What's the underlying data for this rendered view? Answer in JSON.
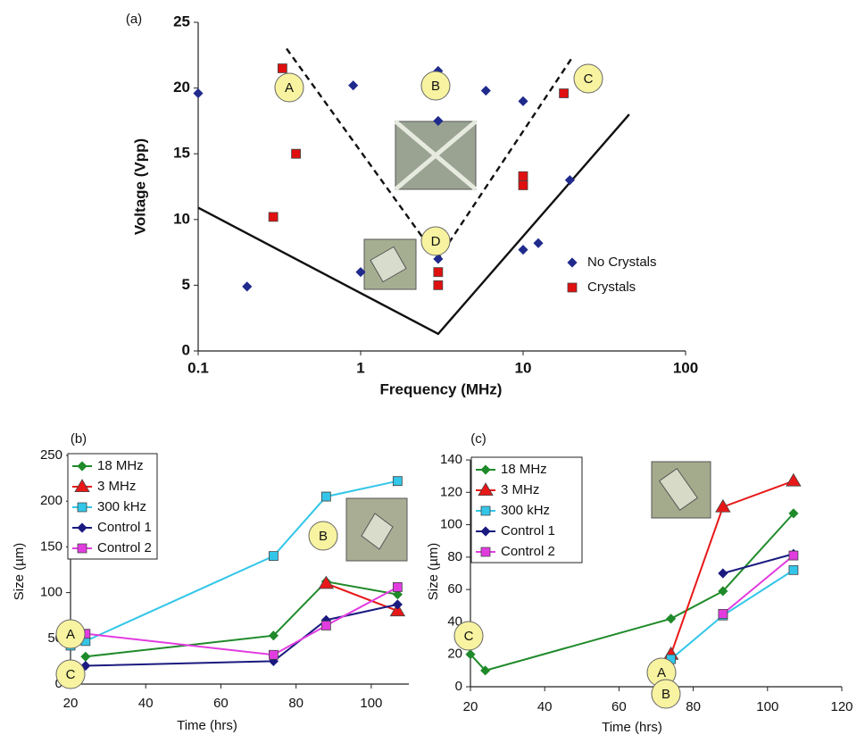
{
  "chart_data": [
    {
      "type": "scatter",
      "panel_label": "(a)",
      "x_label": "Frequency (MHz)",
      "y_label": "Voltage (Vpp)",
      "xscale": "log",
      "xlim": [
        0.1,
        100
      ],
      "ylim": [
        0,
        25
      ],
      "xticks": [
        0.1,
        1,
        10,
        100
      ],
      "yticks": [
        0,
        5,
        10,
        15,
        20,
        25
      ],
      "legend": "lower right",
      "series": [
        {
          "name": "No Crystals",
          "color": "#1f2a8c",
          "marker": "diamond",
          "x": [
            0.1,
            0.2,
            0.9,
            1,
            3,
            3,
            3,
            5.9,
            10,
            10,
            12.4,
            19.4
          ],
          "values": [
            19.6,
            4.9,
            20.2,
            6,
            21.3,
            17.5,
            7,
            19.8,
            19,
            7.7,
            8.2,
            13
          ]
        },
        {
          "name": "Crystals",
          "color": "#e01010",
          "marker": "square",
          "x": [
            0.33,
            0.4,
            0.29,
            3,
            3,
            10,
            10,
            17.8
          ],
          "values": [
            21.5,
            15,
            10.2,
            6,
            5,
            13.3,
            12.6,
            19.6
          ]
        }
      ],
      "boundaries": [
        {
          "dash": true,
          "x": [
            0.35,
            3,
            20
          ],
          "y": [
            23,
            7,
            22.3
          ]
        },
        {
          "dash": false,
          "x": [
            0.1,
            3,
            45
          ],
          "y": [
            10.9,
            1.3,
            18
          ]
        }
      ],
      "annotations": [
        "A",
        "B",
        "C",
        "D"
      ]
    },
    {
      "type": "line",
      "panel_label": "(b)",
      "x_label": "Time (hrs)",
      "y_label": "Size (µm)",
      "xlim": [
        20,
        110
      ],
      "ylim": [
        0,
        250
      ],
      "xticks": [
        20,
        40,
        60,
        80,
        100
      ],
      "yticks": [
        0,
        50,
        100,
        150,
        200,
        250
      ],
      "legend": "upper left",
      "series": [
        {
          "name": "18 MHz",
          "color": "#1f8a2a",
          "marker": "diamond",
          "x": [
            24,
            74,
            88,
            107
          ],
          "values": [
            30,
            53,
            112,
            98
          ]
        },
        {
          "name": "3 MHz",
          "color": "#e81818",
          "marker": "triangle",
          "x": [
            88,
            107
          ],
          "values": [
            110,
            80
          ]
        },
        {
          "name": "300 kHz",
          "color": "#33c6e8",
          "marker": "square",
          "x": [
            20,
            24,
            74,
            88,
            107
          ],
          "values": [
            42,
            47,
            140,
            205,
            222
          ]
        },
        {
          "name": "Control 1",
          "color": "#1a1a80",
          "marker": "diamond",
          "x": [
            24,
            74,
            88,
            107
          ],
          "values": [
            20,
            25,
            70,
            87
          ]
        },
        {
          "name": "Control 2",
          "color": "#e23ce0",
          "marker": "square",
          "x": [
            24,
            74,
            88,
            107
          ],
          "values": [
            55,
            32,
            64,
            106
          ]
        }
      ],
      "annotations": [
        "A",
        "B",
        "C"
      ]
    },
    {
      "type": "line",
      "panel_label": "(c)",
      "x_label": "Time (hrs)",
      "y_label": "Size (µm)",
      "xlim": [
        20,
        120
      ],
      "ylim": [
        0,
        140
      ],
      "xticks": [
        20,
        40,
        60,
        80,
        100,
        120
      ],
      "yticks": [
        0,
        20,
        40,
        60,
        80,
        100,
        120,
        140
      ],
      "legend": "upper left",
      "series": [
        {
          "name": "18 MHz",
          "color": "#1f8a2a",
          "marker": "diamond",
          "x": [
            20,
            24,
            74,
            88,
            107
          ],
          "values": [
            20,
            10,
            42,
            59,
            107
          ]
        },
        {
          "name": "3 MHz",
          "color": "#e81818",
          "marker": "triangle",
          "x": [
            74,
            88,
            107
          ],
          "values": [
            20,
            111,
            127
          ]
        },
        {
          "name": "300 kHz",
          "color": "#33c6e8",
          "marker": "square",
          "x": [
            74,
            88,
            107
          ],
          "values": [
            17,
            44,
            72
          ]
        },
        {
          "name": "Control 1",
          "color": "#1a1a80",
          "marker": "diamond",
          "x": [
            88,
            107
          ],
          "values": [
            70,
            82
          ]
        },
        {
          "name": "Control 2",
          "color": "#e23ce0",
          "marker": "square",
          "x": [
            88,
            107
          ],
          "values": [
            45,
            81
          ]
        }
      ],
      "annotations": [
        "C",
        "A",
        "B"
      ]
    }
  ]
}
